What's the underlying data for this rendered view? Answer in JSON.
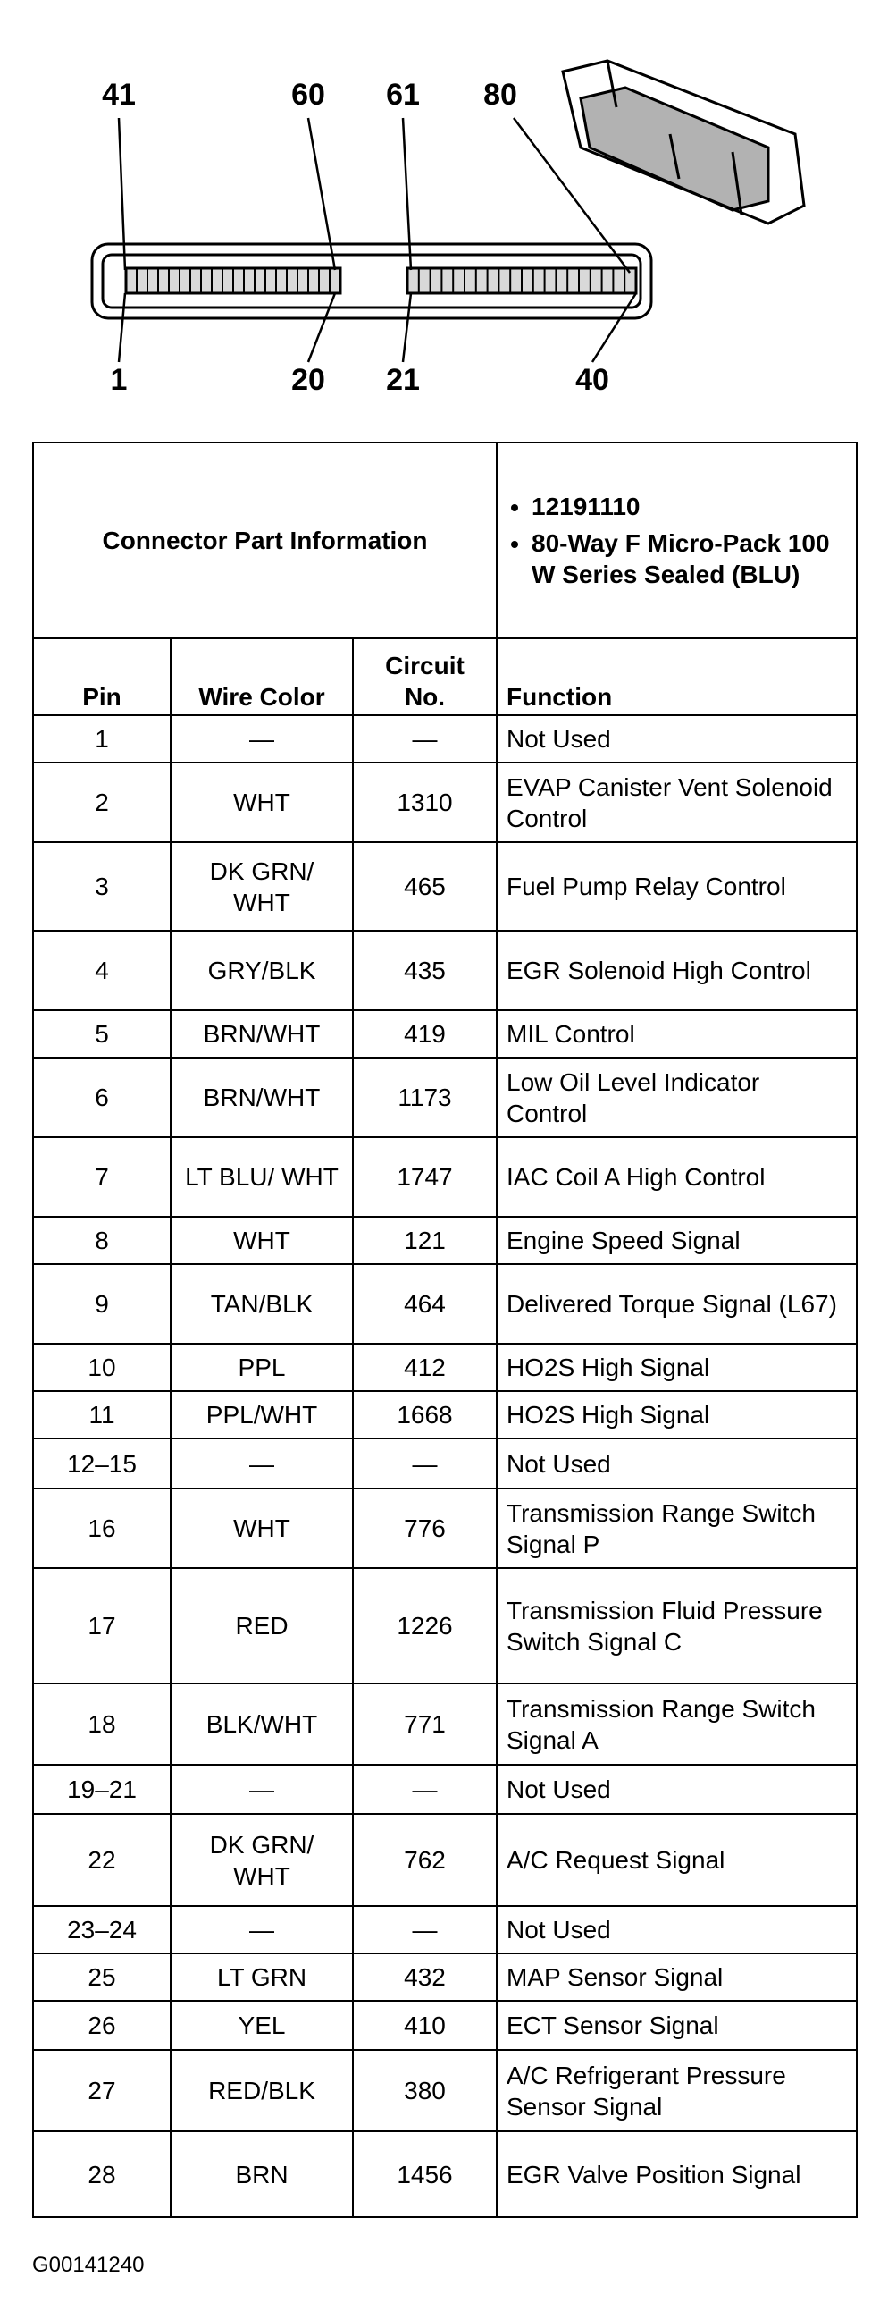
{
  "diagram": {
    "top_labels": [
      "41",
      "60",
      "61",
      "80"
    ],
    "bottom_labels": [
      "1",
      "20",
      "21",
      "40"
    ]
  },
  "table": {
    "title": "Connector Part Information",
    "part_info": [
      "12191110",
      "80-Way F Micro-Pack 100 W Series Sealed (BLU)"
    ],
    "columns": [
      "Pin",
      "Wire Color",
      "Circuit No.",
      "Function"
    ],
    "rows": [
      [
        "1",
        "—",
        "—",
        "Not Used"
      ],
      [
        "2",
        "WHT",
        "1310",
        "EVAP Canister Vent Solenoid Control"
      ],
      [
        "3",
        "DK GRN/ WHT",
        "465",
        "Fuel Pump Relay Control"
      ],
      [
        "4",
        "GRY/BLK",
        "435",
        "EGR Solenoid High Control"
      ],
      [
        "5",
        "BRN/WHT",
        "419",
        "MIL Control"
      ],
      [
        "6",
        "BRN/WHT",
        "1173",
        "Low Oil Level Indicator Control"
      ],
      [
        "7",
        "LT BLU/ WHT",
        "1747",
        "IAC Coil A High Control"
      ],
      [
        "8",
        "WHT",
        "121",
        "Engine Speed Signal"
      ],
      [
        "9",
        "TAN/BLK",
        "464",
        "Delivered Torque Signal (L67)"
      ],
      [
        "10",
        "PPL",
        "412",
        "HO2S High Signal"
      ],
      [
        "11",
        "PPL/WHT",
        "1668",
        "HO2S High Signal"
      ],
      [
        "12–15",
        "—",
        "—",
        "Not Used"
      ],
      [
        "16",
        "WHT",
        "776",
        "Transmission Range Switch Signal P"
      ],
      [
        "17",
        "RED",
        "1226",
        "Transmission Fluid Pressure Switch Signal C"
      ],
      [
        "18",
        "BLK/WHT",
        "771",
        "Transmission Range Switch Signal A"
      ],
      [
        "19–21",
        "—",
        "—",
        "Not Used"
      ],
      [
        "22",
        "DK GRN/ WHT",
        "762",
        "A/C Request Signal"
      ],
      [
        "23–24",
        "—",
        "—",
        "Not Used"
      ],
      [
        "25",
        "LT GRN",
        "432",
        "MAP Sensor Signal"
      ],
      [
        "26",
        "YEL",
        "410",
        "ECT Sensor Signal"
      ],
      [
        "27",
        "RED/BLK",
        "380",
        "A/C Refrigerant Pressure Sensor Signal"
      ],
      [
        "28",
        "BRN",
        "1456",
        "EGR Valve Position Signal"
      ]
    ]
  },
  "footer": "G00141240"
}
